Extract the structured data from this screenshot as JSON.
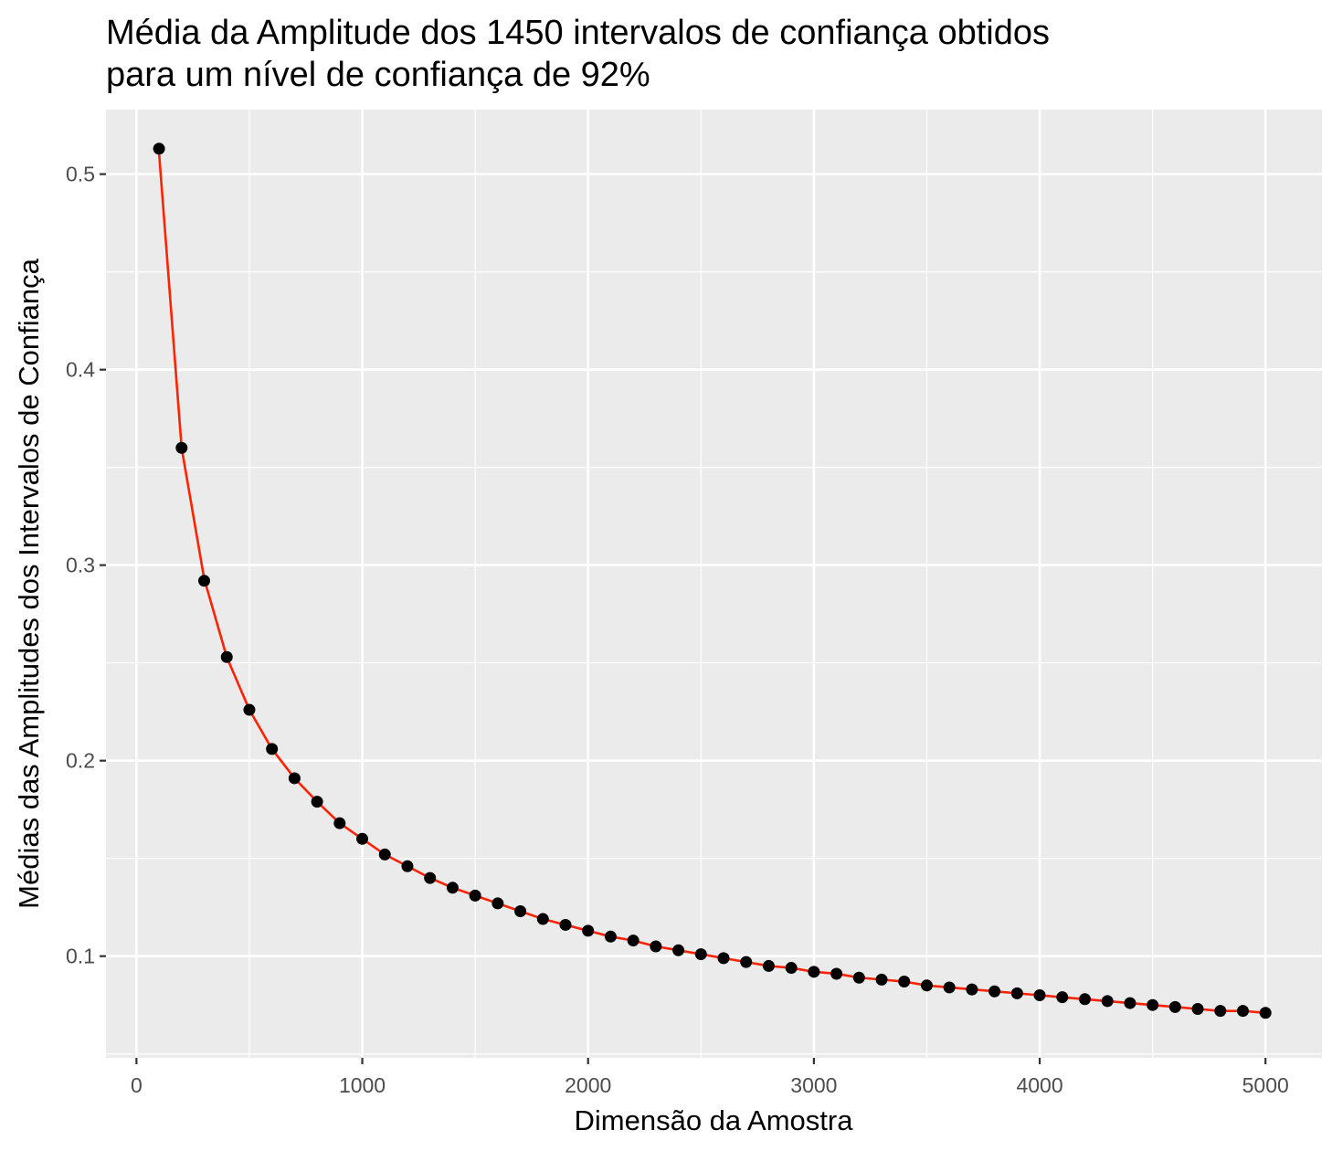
{
  "chart_data": {
    "type": "scatter",
    "title_lines": [
      "Média da Amplitude dos 1450 intervalos de confiança obtidos",
      "para um nível de confiança de 92%"
    ],
    "xlabel": "Dimensão da Amostra",
    "ylabel": "Médias das Amplitudes dos Intervalos de Confiança",
    "xlim": [
      -135,
      5250
    ],
    "ylim": [
      0.048,
      0.533
    ],
    "x_ticks": [
      0,
      1000,
      2000,
      3000,
      4000,
      5000
    ],
    "x_tick_labels": [
      "0",
      "1000",
      "2000",
      "3000",
      "4000",
      "5000"
    ],
    "y_ticks": [
      0.1,
      0.2,
      0.3,
      0.4,
      0.5
    ],
    "y_tick_labels": [
      "0.1",
      "0.2",
      "0.3",
      "0.4",
      "0.5"
    ],
    "grid": true,
    "colors": {
      "panel_background": "#ebebeb",
      "grid": "#ffffff",
      "points": "#000000",
      "fitted_line": "#ff2200"
    },
    "series": [
      {
        "type": "scatter",
        "x": [
          100,
          200,
          300,
          400,
          500,
          600,
          700,
          800,
          900,
          1000,
          1100,
          1200,
          1300,
          1400,
          1500,
          1600,
          1700,
          1800,
          1900,
          2000,
          2100,
          2200,
          2300,
          2400,
          2500,
          2600,
          2700,
          2800,
          2900,
          3000,
          3100,
          3200,
          3300,
          3400,
          3500,
          3600,
          3700,
          3800,
          3900,
          4000,
          4100,
          4200,
          4300,
          4400,
          4500,
          4600,
          4700,
          4800,
          4900,
          5000
        ],
        "y": [
          0.513,
          0.36,
          0.292,
          0.253,
          0.226,
          0.206,
          0.191,
          0.179,
          0.168,
          0.16,
          0.152,
          0.146,
          0.14,
          0.135,
          0.131,
          0.127,
          0.123,
          0.119,
          0.116,
          0.113,
          0.11,
          0.108,
          0.105,
          0.103,
          0.101,
          0.099,
          0.097,
          0.095,
          0.094,
          0.092,
          0.091,
          0.089,
          0.088,
          0.087,
          0.085,
          0.084,
          0.083,
          0.082,
          0.081,
          0.08,
          0.079,
          0.078,
          0.077,
          0.076,
          0.075,
          0.074,
          0.073,
          0.072,
          0.072,
          0.071
        ]
      },
      {
        "type": "line",
        "x": [
          100,
          200,
          300,
          400,
          500,
          600,
          700,
          800,
          900,
          1000,
          1100,
          1200,
          1300,
          1400,
          1500,
          1600,
          1700,
          1800,
          1900,
          2000,
          2100,
          2200,
          2300,
          2400,
          2500,
          2600,
          2700,
          2800,
          2900,
          3000,
          3100,
          3200,
          3300,
          3400,
          3500,
          3600,
          3700,
          3800,
          3900,
          4000,
          4100,
          4200,
          4300,
          4400,
          4500,
          4600,
          4700,
          4800,
          4900,
          5000
        ],
        "y": [
          0.511,
          0.36,
          0.293,
          0.253,
          0.226,
          0.206,
          0.191,
          0.179,
          0.168,
          0.16,
          0.152,
          0.146,
          0.14,
          0.135,
          0.131,
          0.127,
          0.123,
          0.119,
          0.116,
          0.113,
          0.11,
          0.108,
          0.105,
          0.103,
          0.101,
          0.099,
          0.097,
          0.095,
          0.094,
          0.092,
          0.091,
          0.089,
          0.088,
          0.087,
          0.085,
          0.084,
          0.083,
          0.082,
          0.081,
          0.08,
          0.079,
          0.078,
          0.077,
          0.076,
          0.075,
          0.074,
          0.073,
          0.072,
          0.072,
          0.071
        ]
      }
    ]
  }
}
